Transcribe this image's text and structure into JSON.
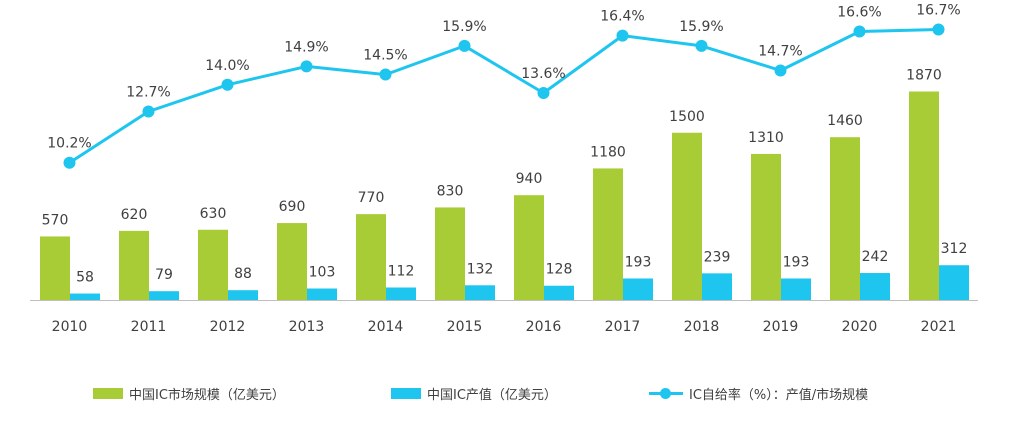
{
  "colors": {
    "market": "#a8cc35",
    "output": "#1ec5ee",
    "rate": "#1ec5ee",
    "axis": "#bfbfbf",
    "text": "#404040"
  },
  "legend": {
    "market": "中国IC市场规模（亿美元）",
    "output": "中国IC产值（亿美元）",
    "rate": "IC自给率（%）：产值/市场规模"
  },
  "chart_data": {
    "type": "bar",
    "categories": [
      "2010",
      "2011",
      "2012",
      "2013",
      "2014",
      "2015",
      "2016",
      "2017",
      "2018",
      "2019",
      "2020",
      "2021"
    ],
    "series": [
      {
        "name": "中国IC市场规模（亿美元）",
        "type": "bar",
        "values": [
          570,
          620,
          630,
          690,
          770,
          830,
          940,
          1180,
          1500,
          1310,
          1460,
          1870
        ]
      },
      {
        "name": "中国IC产值（亿美元）",
        "type": "bar",
        "values": [
          58,
          79,
          88,
          103,
          112,
          132,
          128,
          193,
          239,
          193,
          242,
          312
        ]
      },
      {
        "name": "IC自给率（%）：产值/市场规模",
        "type": "line",
        "values": [
          10.2,
          12.7,
          14.0,
          14.9,
          14.5,
          15.9,
          13.6,
          16.4,
          15.9,
          14.7,
          16.6,
          16.7
        ],
        "labels": [
          "10.2%",
          "12.7%",
          "14.0%",
          "14.9%",
          "14.5%",
          "15.9%",
          "13.6%",
          "16.4%",
          "15.9%",
          "14.7%",
          "16.6%",
          "16.7%"
        ]
      }
    ],
    "title": "",
    "xlabel": "",
    "ylabel": ""
  }
}
